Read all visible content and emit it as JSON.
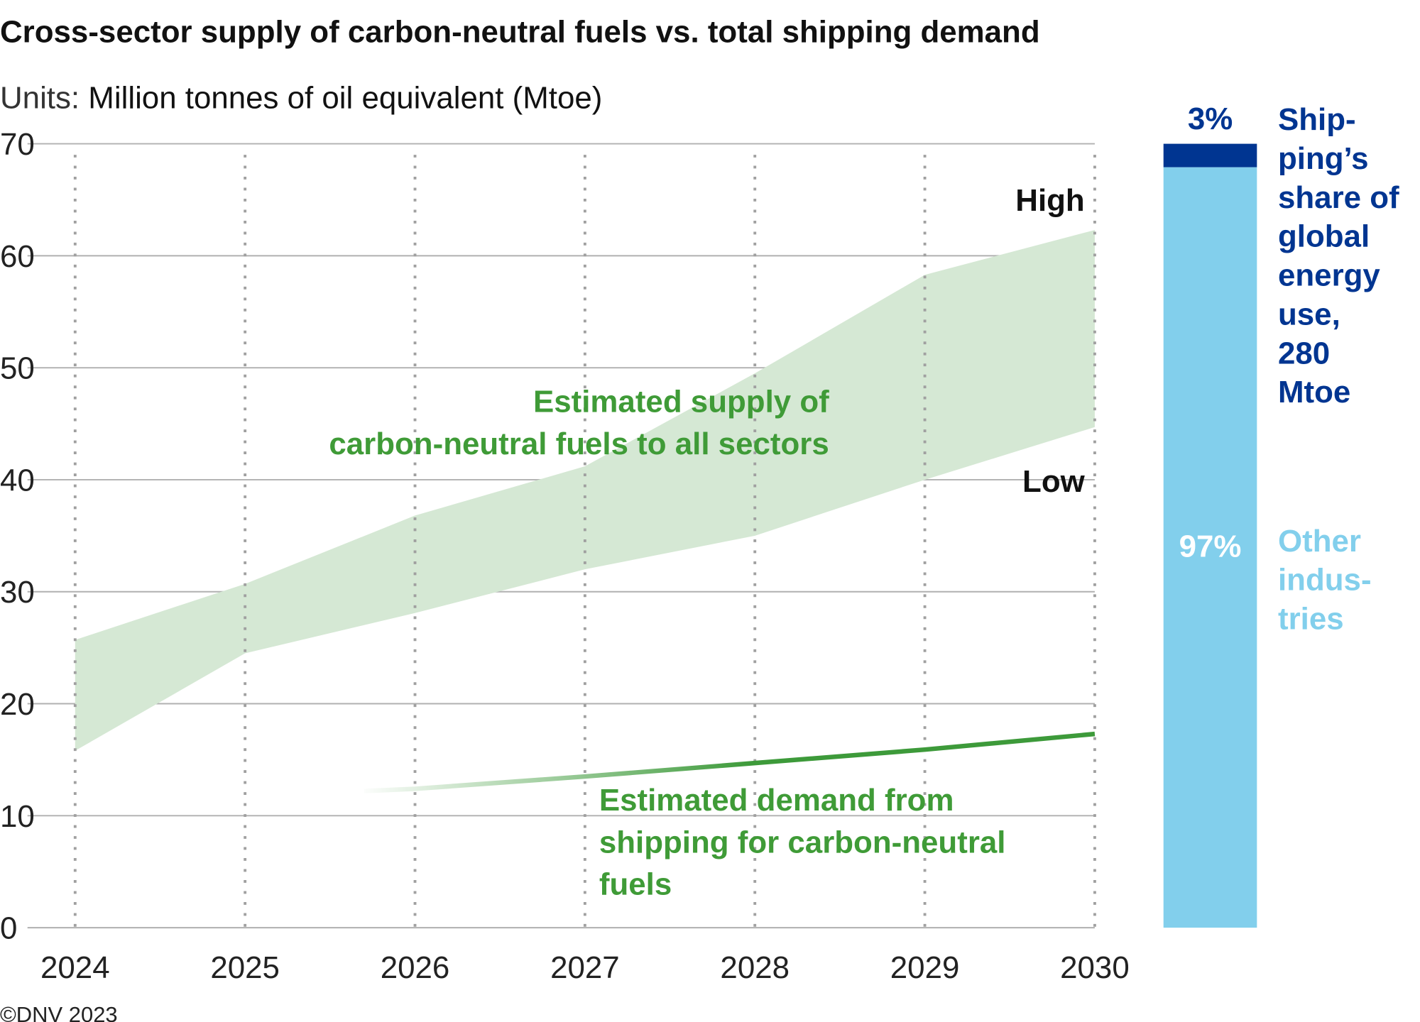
{
  "chart_data": {
    "type": "area",
    "title": "Cross-sector supply of carbon-neutral fuels vs. total shipping demand",
    "units_label_prefix": "Units: ",
    "units_label": "Million tonnes of oil equivalent (Mtoe)",
    "x": [
      2024,
      2025,
      2026,
      2027,
      2028,
      2029,
      2030
    ],
    "x_tick_labels": [
      "2024",
      "2025",
      "2026",
      "2027",
      "2028",
      "2029",
      "2030"
    ],
    "ylim": [
      0,
      70
    ],
    "y_ticks": [
      0,
      10,
      20,
      30,
      40,
      50,
      60,
      70
    ],
    "grid": true,
    "supply_band": {
      "label_line1": "Estimated supply of",
      "label_line2": "carbon-neutral fuels to all sectors",
      "high_label": "High",
      "low_label": "Low",
      "high": [
        25.7,
        30.7,
        36.8,
        41.2,
        49.5,
        58.3,
        62.3
      ],
      "low": [
        15.8,
        24.5,
        28.1,
        32.0,
        35.0,
        40.0,
        44.7
      ],
      "color": "#d5e8d4"
    },
    "shipping_demand": {
      "label_line1": "Estimated demand from",
      "label_line2": "shipping for carbon-neutral",
      "label_line3": "fuels",
      "x": [
        2025.7,
        2026,
        2027,
        2028,
        2029,
        2030
      ],
      "values": [
        12.2,
        12.4,
        13.5,
        14.7,
        15.9,
        17.3
      ],
      "color": "#3d9a3a"
    },
    "share_bar": {
      "shipping_pct_label": "3%",
      "shipping_pct": 3,
      "shipping_text": [
        "Ship-",
        "ping’s",
        "share of",
        "global",
        "energy",
        "use,"
      ],
      "shipping_total": [
        "280",
        "Mtoe"
      ],
      "other_pct_label": "97%",
      "other_pct": 97,
      "other_text": [
        "Other",
        "indus-",
        "tries"
      ],
      "shipping_color": "#003591",
      "other_color": "#82cfec"
    }
  },
  "footer": {
    "copyright": "©DNV 2023"
  }
}
